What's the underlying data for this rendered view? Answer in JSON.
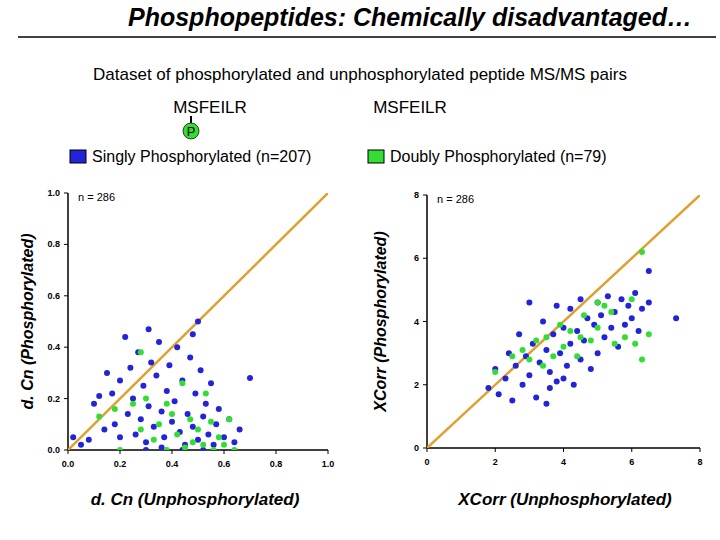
{
  "header": {
    "title": "Phosphopeptides: Chemically disadvantaged…",
    "subtitle": "Dataset of phosphorylated and unphosphorylated peptide MS/MS pairs",
    "peptides": [
      {
        "sequence": "MSFEILR",
        "modification": "P"
      },
      {
        "sequence": "MSFEILR"
      }
    ]
  },
  "chart_data": [
    {
      "type": "scatter",
      "x_label": "d. Cn (Unphosphorylated)",
      "y_label": "d. Cn (Phosphorylated)",
      "annotation": "n = 286",
      "xlim": [
        0,
        1
      ],
      "ylim": [
        0,
        1
      ],
      "xticks": [
        {
          "value": 0,
          "label": "0.0"
        },
        {
          "value": 0.2,
          "label": "0.2"
        },
        {
          "value": 0.4,
          "label": "0.4"
        },
        {
          "value": 0.6,
          "label": "0.6"
        },
        {
          "value": 0.8,
          "label": "0.8"
        },
        {
          "value": 1,
          "label": "1.0"
        }
      ],
      "yticks": [
        {
          "value": 0,
          "label": "0.0"
        },
        {
          "value": 0.2,
          "label": "0.2"
        },
        {
          "value": 0.4,
          "label": "0.4"
        },
        {
          "value": 0.6,
          "label": "0.6"
        },
        {
          "value": 0.8,
          "label": "0.8"
        },
        {
          "value": 1,
          "label": "1.0"
        }
      ],
      "series": [
        {
          "name": "Singly Phosphorylated (n=207)",
          "color": "#2323d8",
          "marker": "circle",
          "x": [
            0.02,
            0.05,
            0.08,
            0.1,
            0.12,
            0.14,
            0.15,
            0.17,
            0.18,
            0.2,
            0.2,
            0.22,
            0.23,
            0.24,
            0.25,
            0.26,
            0.27,
            0.28,
            0.29,
            0.3,
            0.31,
            0.32,
            0.33,
            0.34,
            0.35,
            0.36,
            0.37,
            0.38,
            0.39,
            0.4,
            0.41,
            0.42,
            0.43,
            0.44,
            0.45,
            0.46,
            0.47,
            0.48,
            0.49,
            0.5,
            0.51,
            0.52,
            0.53,
            0.54,
            0.55,
            0.56,
            0.57,
            0.58,
            0.6,
            0.62,
            0.64,
            0.66,
            0.7,
            0.5,
            0.48,
            0.31,
            0.3,
            0.44,
            0.36,
            0.52
          ],
          "values": [
            0.05,
            0.02,
            0.04,
            0.18,
            0.21,
            0.08,
            0.3,
            0.22,
            0.1,
            0.27,
            0.05,
            0.44,
            0.14,
            0.32,
            0.2,
            0.06,
            0.38,
            0.12,
            0.25,
            0.03,
            0.17,
            0.34,
            0.09,
            0.29,
            0.42,
            0.15,
            0.05,
            0.23,
            0.33,
            0.11,
            0.19,
            0.4,
            0.07,
            0.27,
            0.02,
            0.14,
            0.36,
            0.09,
            0.22,
            0.04,
            0.31,
            0.13,
            0.18,
            0.06,
            0.26,
            0.02,
            0.1,
            0.16,
            0.05,
            0.12,
            0.03,
            0.08,
            0.28,
            0.5,
            0.45,
            0.47,
            0,
            0,
            0.01,
            0
          ]
        },
        {
          "name": "Doubly Phosphorylated (n=79)",
          "color": "#33dd33",
          "marker": "circle",
          "x": [
            0.12,
            0.18,
            0.2,
            0.25,
            0.28,
            0.3,
            0.33,
            0.35,
            0.38,
            0.4,
            0.42,
            0.44,
            0.45,
            0.47,
            0.48,
            0.5,
            0.52,
            0.53,
            0.55,
            0.56,
            0.58,
            0.6,
            0.62,
            0.64,
            0.38,
            0.28
          ],
          "values": [
            0.13,
            0.16,
            0,
            0.18,
            0.08,
            0.2,
            0.04,
            0.1,
            0,
            0.14,
            0.06,
            0.26,
            0.01,
            0.12,
            0.03,
            0.08,
            0.02,
            0.22,
            0.11,
            0,
            0.05,
            0.02,
            0.12,
            0,
            0.18,
            0.38
          ]
        }
      ]
    },
    {
      "type": "scatter",
      "x_label": "XCorr (Unphosphorylated)",
      "y_label": "XCorr (Phosphorylated)",
      "annotation": "n = 286",
      "xlim": [
        0,
        8
      ],
      "ylim": [
        0,
        8
      ],
      "xticks": [
        0,
        2,
        4,
        6,
        8
      ],
      "yticks": [
        0,
        2,
        4,
        6,
        8
      ],
      "series": [
        {
          "name": "Singly Phosphorylated (n=207)",
          "color": "#2323d8",
          "marker": "circle",
          "x": [
            1.8,
            2.0,
            2.1,
            2.3,
            2.4,
            2.5,
            2.6,
            2.7,
            2.8,
            2.9,
            3.0,
            3.0,
            3.1,
            3.2,
            3.3,
            3.4,
            3.5,
            3.5,
            3.6,
            3.7,
            3.8,
            3.8,
            3.9,
            4.0,
            4.1,
            4.2,
            4.2,
            4.3,
            4.4,
            4.5,
            4.5,
            4.6,
            4.7,
            4.8,
            4.9,
            5.0,
            5.0,
            5.1,
            5.2,
            5.3,
            5.4,
            5.5,
            5.6,
            5.7,
            5.8,
            5.9,
            6.0,
            6.1,
            6.2,
            6.3,
            6.5,
            6.5,
            7.3,
            4.0,
            3.6
          ],
          "values": [
            1.9,
            2.5,
            1.7,
            2.2,
            3.0,
            1.5,
            2.6,
            3.6,
            2.0,
            2.9,
            4.6,
            2.3,
            3.3,
            1.6,
            2.7,
            4.0,
            3.1,
            1.4,
            2.4,
            3.6,
            4.5,
            2.1,
            3.0,
            3.8,
            2.6,
            4.4,
            3.3,
            2.0,
            3.7,
            4.7,
            2.8,
            3.4,
            4.1,
            2.5,
            3.9,
            4.6,
            3.0,
            4.2,
            3.5,
            4.8,
            3.8,
            4.3,
            3.2,
            4.7,
            3.9,
            4.5,
            4.1,
            4.9,
            3.7,
            4.4,
            5.6,
            4.6,
            4.1,
            2.2,
            1.9
          ]
        },
        {
          "name": "Doubly Phosphorylated (n=79)",
          "color": "#33dd33",
          "marker": "circle",
          "x": [
            2.0,
            2.5,
            2.8,
            3.0,
            3.2,
            3.4,
            3.5,
            3.7,
            3.9,
            4.0,
            4.2,
            4.4,
            4.5,
            4.6,
            4.8,
            5.0,
            5.2,
            5.4,
            5.5,
            5.8,
            6.0,
            6.1,
            6.5,
            6.3,
            6.3,
            5.0
          ],
          "values": [
            2.4,
            2.9,
            3.1,
            2.8,
            3.4,
            2.6,
            3.5,
            2.9,
            3.9,
            3.2,
            3.7,
            2.9,
            3.5,
            4.2,
            3.4,
            3.8,
            4.5,
            4.3,
            3.3,
            3.5,
            4.7,
            3.3,
            3.6,
            2.8,
            6.2,
            4.6
          ]
        }
      ]
    }
  ]
}
